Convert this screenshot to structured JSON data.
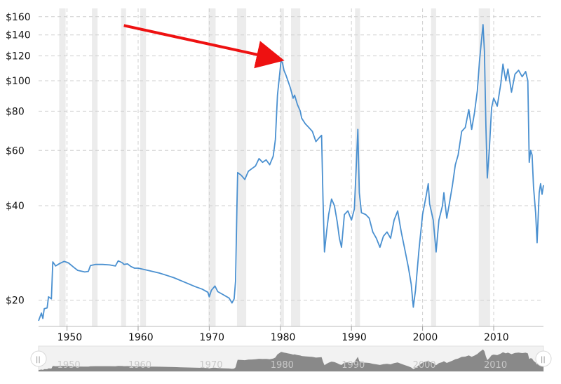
{
  "chart_data": {
    "type": "line",
    "y_scale": "log",
    "ylim": [
      16.5,
      170
    ],
    "xlim": [
      1946.0,
      2017.0
    ],
    "yticks": [
      {
        "value": 20,
        "label": "$20"
      },
      {
        "value": 40,
        "label": "$40"
      },
      {
        "value": 60,
        "label": "$60"
      },
      {
        "value": 80,
        "label": "$80"
      },
      {
        "value": 100,
        "label": "$100"
      },
      {
        "value": 120,
        "label": "$120"
      },
      {
        "value": 140,
        "label": "$140"
      },
      {
        "value": 160,
        "label": "$160"
      }
    ],
    "xticks": [
      {
        "value": 1950,
        "label": "1950"
      },
      {
        "value": 1960,
        "label": "1960"
      },
      {
        "value": 1970,
        "label": "1970"
      },
      {
        "value": 1980,
        "label": "1980"
      },
      {
        "value": 1990,
        "label": "1990"
      },
      {
        "value": 2000,
        "label": "2000"
      },
      {
        "value": 2010,
        "label": "2010"
      }
    ],
    "grid": {
      "x": true,
      "y": true
    },
    "line_color": "#4a90d0",
    "recession_color": "#ececec",
    "arrow_color": "#ee1111",
    "recessions": [
      [
        1948.9,
        1949.8
      ],
      [
        1953.5,
        1954.3
      ],
      [
        1957.6,
        1958.3
      ],
      [
        1960.3,
        1961.1
      ],
      [
        1969.9,
        1970.9
      ],
      [
        1973.9,
        1975.2
      ],
      [
        1980.0,
        1980.5
      ],
      [
        1981.5,
        1982.8
      ],
      [
        1990.5,
        1991.2
      ],
      [
        2001.2,
        2001.9
      ],
      [
        2007.9,
        2009.5
      ]
    ],
    "annotation_arrow": {
      "from": [
        1958.0,
        150
      ],
      "to": [
        1979.8,
        117
      ]
    },
    "series": [
      {
        "values": [
          [
            1946.0,
            17.2
          ],
          [
            1946.4,
            18.2
          ],
          [
            1946.6,
            17.5
          ],
          [
            1946.8,
            18.8
          ],
          [
            1947.2,
            18.9
          ],
          [
            1947.4,
            20.5
          ],
          [
            1947.8,
            20.2
          ],
          [
            1948.0,
            26.5
          ],
          [
            1948.4,
            25.7
          ],
          [
            1949.0,
            26.2
          ],
          [
            1949.6,
            26.6
          ],
          [
            1950.2,
            26.3
          ],
          [
            1951.0,
            25.4
          ],
          [
            1951.5,
            24.9
          ],
          [
            1952.5,
            24.6
          ],
          [
            1953.0,
            24.7
          ],
          [
            1953.3,
            25.8
          ],
          [
            1954.0,
            26.0
          ],
          [
            1955.0,
            26.0
          ],
          [
            1956.0,
            25.9
          ],
          [
            1956.8,
            25.7
          ],
          [
            1957.2,
            26.7
          ],
          [
            1957.8,
            26.3
          ],
          [
            1958.0,
            26.0
          ],
          [
            1958.5,
            26.1
          ],
          [
            1959.0,
            25.6
          ],
          [
            1959.5,
            25.3
          ],
          [
            1960.0,
            25.3
          ],
          [
            1961.0,
            25.0
          ],
          [
            1962.0,
            24.7
          ],
          [
            1963.0,
            24.4
          ],
          [
            1964.0,
            24.0
          ],
          [
            1965.0,
            23.6
          ],
          [
            1966.0,
            23.1
          ],
          [
            1967.0,
            22.6
          ],
          [
            1968.0,
            22.1
          ],
          [
            1969.0,
            21.7
          ],
          [
            1969.8,
            21.2
          ],
          [
            1970.0,
            20.5
          ],
          [
            1970.3,
            21.5
          ],
          [
            1970.8,
            22.2
          ],
          [
            1971.2,
            21.3
          ],
          [
            1972.0,
            20.8
          ],
          [
            1972.8,
            20.3
          ],
          [
            1973.2,
            19.6
          ],
          [
            1973.5,
            20.2
          ],
          [
            1973.7,
            23.0
          ],
          [
            1973.9,
            40.0
          ],
          [
            1974.0,
            51.0
          ],
          [
            1974.5,
            50.0
          ],
          [
            1975.0,
            48.5
          ],
          [
            1975.5,
            51.5
          ],
          [
            1976.0,
            52.5
          ],
          [
            1976.5,
            53.5
          ],
          [
            1977.0,
            56.5
          ],
          [
            1977.5,
            55.0
          ],
          [
            1978.0,
            56.0
          ],
          [
            1978.5,
            54.0
          ],
          [
            1979.0,
            57.5
          ],
          [
            1979.3,
            65.0
          ],
          [
            1979.6,
            90.0
          ],
          [
            1979.9,
            105.0
          ],
          [
            1980.1,
            116.0
          ],
          [
            1980.3,
            114.0
          ],
          [
            1980.5,
            108.0
          ],
          [
            1980.8,
            104.0
          ],
          [
            1981.0,
            101.0
          ],
          [
            1981.4,
            95.0
          ],
          [
            1981.8,
            88.0
          ],
          [
            1982.0,
            90.0
          ],
          [
            1982.4,
            84.0
          ],
          [
            1982.8,
            80.0
          ],
          [
            1983.0,
            76.0
          ],
          [
            1983.5,
            73.0
          ],
          [
            1984.0,
            71.0
          ],
          [
            1984.5,
            69.0
          ],
          [
            1985.0,
            64.0
          ],
          [
            1985.5,
            66.0
          ],
          [
            1985.8,
            67.0
          ],
          [
            1986.0,
            42.0
          ],
          [
            1986.2,
            28.5
          ],
          [
            1986.5,
            33.0
          ],
          [
            1986.8,
            37.5
          ],
          [
            1987.2,
            42.0
          ],
          [
            1987.6,
            40.0
          ],
          [
            1988.0,
            35.5
          ],
          [
            1988.3,
            31.5
          ],
          [
            1988.6,
            29.5
          ],
          [
            1989.0,
            37.5
          ],
          [
            1989.5,
            38.5
          ],
          [
            1990.0,
            36.0
          ],
          [
            1990.4,
            39.0
          ],
          [
            1990.7,
            55.0
          ],
          [
            1990.9,
            70.0
          ],
          [
            1991.1,
            44.0
          ],
          [
            1991.4,
            38.0
          ],
          [
            1992.0,
            37.5
          ],
          [
            1992.5,
            36.5
          ],
          [
            1993.0,
            33.0
          ],
          [
            1993.5,
            31.5
          ],
          [
            1994.0,
            29.5
          ],
          [
            1994.5,
            32.0
          ],
          [
            1995.0,
            33.0
          ],
          [
            1995.5,
            31.5
          ],
          [
            1996.0,
            36.0
          ],
          [
            1996.5,
            38.5
          ],
          [
            1996.8,
            35.0
          ],
          [
            1997.0,
            33.0
          ],
          [
            1997.5,
            29.0
          ],
          [
            1998.0,
            25.5
          ],
          [
            1998.4,
            22.5
          ],
          [
            1998.7,
            19.0
          ],
          [
            1999.0,
            21.5
          ],
          [
            1999.5,
            29.0
          ],
          [
            2000.0,
            37.5
          ],
          [
            2000.5,
            43.0
          ],
          [
            2000.8,
            47.0
          ],
          [
            2001.0,
            40.5
          ],
          [
            2001.5,
            36.0
          ],
          [
            2001.9,
            28.5
          ],
          [
            2002.3,
            36.0
          ],
          [
            2002.8,
            40.0
          ],
          [
            2003.0,
            44.0
          ],
          [
            2003.4,
            36.5
          ],
          [
            2003.8,
            41.0
          ],
          [
            2004.2,
            46.5
          ],
          [
            2004.6,
            54.0
          ],
          [
            2005.0,
            58.0
          ],
          [
            2005.5,
            69.0
          ],
          [
            2006.0,
            71.0
          ],
          [
            2006.5,
            81.0
          ],
          [
            2006.9,
            70.0
          ],
          [
            2007.3,
            79.0
          ],
          [
            2007.7,
            93.0
          ],
          [
            2008.0,
            115.0
          ],
          [
            2008.3,
            136.0
          ],
          [
            2008.5,
            151.0
          ],
          [
            2008.7,
            124.0
          ],
          [
            2008.9,
            72.0
          ],
          [
            2009.1,
            49.0
          ],
          [
            2009.4,
            61.0
          ],
          [
            2009.7,
            82.0
          ],
          [
            2010.0,
            88.0
          ],
          [
            2010.5,
            83.0
          ],
          [
            2011.0,
            98.0
          ],
          [
            2011.3,
            113.0
          ],
          [
            2011.7,
            100.0
          ],
          [
            2012.0,
            109.0
          ],
          [
            2012.5,
            92.0
          ],
          [
            2013.0,
            105.0
          ],
          [
            2013.5,
            108.0
          ],
          [
            2014.0,
            103.0
          ],
          [
            2014.5,
            107.0
          ],
          [
            2014.8,
            100.0
          ],
          [
            2015.0,
            55.0
          ],
          [
            2015.2,
            60.0
          ],
          [
            2015.4,
            58.0
          ],
          [
            2015.6,
            46.0
          ],
          [
            2015.9,
            38.0
          ],
          [
            2016.1,
            30.5
          ],
          [
            2016.4,
            44.0
          ],
          [
            2016.6,
            47.0
          ],
          [
            2016.8,
            43.5
          ],
          [
            2017.0,
            46.5
          ]
        ]
      }
    ],
    "navigator": {
      "labels": [
        "1950",
        "1960",
        "1970",
        "1980",
        "1990",
        "2000",
        "2010"
      ],
      "handle_left": "||",
      "handle_right": "||"
    }
  }
}
